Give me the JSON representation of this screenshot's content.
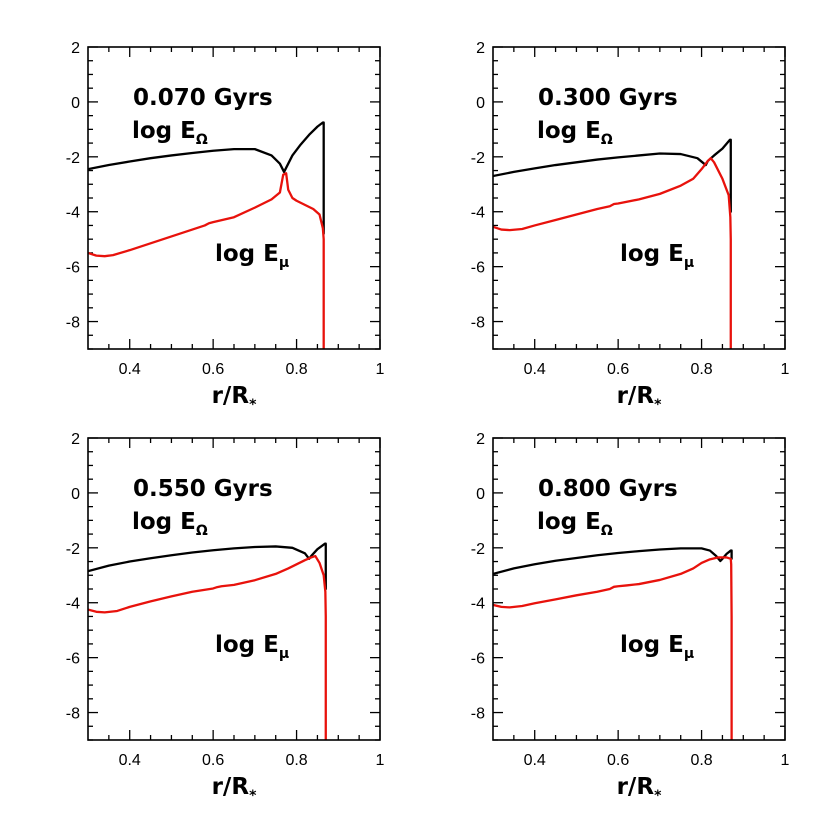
{
  "chart_data": [
    {
      "type": "line",
      "panel": "top-left",
      "title": "0.070 Gyrs",
      "xlabel": "r/R",
      "xlabel_sub": "*",
      "ylabel": "",
      "xlim": [
        0.3,
        1.0
      ],
      "ylim": [
        -9,
        2
      ],
      "xticks": [
        0.4,
        0.6,
        0.8,
        1.0
      ],
      "xtick_labels": [
        "0.4",
        "0.6",
        "0.8",
        "1"
      ],
      "yticks": [
        -8,
        -6,
        -4,
        -2,
        0,
        2
      ],
      "ytick_labels": [
        "-8",
        "-6",
        "-4",
        "-2",
        "0",
        "2"
      ],
      "series": [
        {
          "name": "log E_Ω",
          "label_main": "log E",
          "label_sub": "Ω",
          "color": "#000000",
          "x": [
            0.3,
            0.35,
            0.4,
            0.45,
            0.5,
            0.55,
            0.6,
            0.65,
            0.7,
            0.74,
            0.76,
            0.77,
            0.775,
            0.79,
            0.81,
            0.83,
            0.85,
            0.863,
            0.865,
            0.865
          ],
          "y": [
            -2.45,
            -2.3,
            -2.17,
            -2.05,
            -1.95,
            -1.86,
            -1.78,
            -1.72,
            -1.72,
            -1.95,
            -2.25,
            -2.55,
            -2.4,
            -1.95,
            -1.55,
            -1.2,
            -0.9,
            -0.75,
            -0.75,
            -4.8
          ]
        },
        {
          "name": "log E_μ",
          "label_main": "log E",
          "label_sub": "μ",
          "color": "#e8120c",
          "x": [
            0.3,
            0.32,
            0.34,
            0.36,
            0.4,
            0.45,
            0.5,
            0.55,
            0.58,
            0.59,
            0.6,
            0.65,
            0.7,
            0.74,
            0.76,
            0.768,
            0.775,
            0.78,
            0.79,
            0.8,
            0.82,
            0.84,
            0.855,
            0.863,
            0.865,
            0.865
          ],
          "y": [
            -5.5,
            -5.6,
            -5.62,
            -5.58,
            -5.4,
            -5.15,
            -4.9,
            -4.65,
            -4.5,
            -4.42,
            -4.38,
            -4.2,
            -3.85,
            -3.55,
            -3.3,
            -2.65,
            -2.6,
            -3.2,
            -3.5,
            -3.6,
            -3.75,
            -3.9,
            -4.1,
            -4.6,
            -5.0,
            -9.0
          ]
        }
      ]
    },
    {
      "type": "line",
      "panel": "top-right",
      "title": "0.300 Gyrs",
      "xlabel": "r/R",
      "xlabel_sub": "*",
      "ylabel": "",
      "xlim": [
        0.3,
        1.0
      ],
      "ylim": [
        -9,
        2
      ],
      "xticks": [
        0.4,
        0.6,
        0.8,
        1.0
      ],
      "xtick_labels": [
        "0.4",
        "0.6",
        "0.8",
        "1"
      ],
      "yticks": [
        -8,
        -6,
        -4,
        -2,
        0,
        2
      ],
      "ytick_labels": [
        "-8",
        "-6",
        "-4",
        "-2",
        "0",
        "2"
      ],
      "series": [
        {
          "name": "log E_Ω",
          "label_main": "log E",
          "label_sub": "Ω",
          "color": "#000000",
          "x": [
            0.3,
            0.35,
            0.4,
            0.45,
            0.5,
            0.55,
            0.6,
            0.65,
            0.7,
            0.75,
            0.79,
            0.81,
            0.815,
            0.83,
            0.85,
            0.868,
            0.87,
            0.87
          ],
          "y": [
            -2.7,
            -2.55,
            -2.42,
            -2.3,
            -2.2,
            -2.1,
            -2.02,
            -1.95,
            -1.88,
            -1.9,
            -2.05,
            -2.3,
            -2.15,
            -1.95,
            -1.7,
            -1.38,
            -1.38,
            -4.0
          ]
        },
        {
          "name": "log E_μ",
          "label_main": "log E",
          "label_sub": "μ",
          "color": "#e8120c",
          "x": [
            0.3,
            0.32,
            0.34,
            0.37,
            0.4,
            0.45,
            0.5,
            0.55,
            0.58,
            0.59,
            0.6,
            0.65,
            0.7,
            0.75,
            0.78,
            0.8,
            0.815,
            0.822,
            0.83,
            0.85,
            0.865,
            0.869,
            0.87,
            0.87
          ],
          "y": [
            -4.55,
            -4.65,
            -4.67,
            -4.63,
            -4.5,
            -4.3,
            -4.1,
            -3.9,
            -3.8,
            -3.72,
            -3.7,
            -3.55,
            -3.35,
            -3.05,
            -2.8,
            -2.45,
            -2.15,
            -2.05,
            -2.2,
            -2.8,
            -3.4,
            -4.2,
            -5.0,
            -9.0
          ]
        }
      ]
    },
    {
      "type": "line",
      "panel": "bottom-left",
      "title": "0.550 Gyrs",
      "xlabel": "r/R",
      "xlabel_sub": "*",
      "ylabel": "",
      "xlim": [
        0.3,
        1.0
      ],
      "ylim": [
        -9,
        2
      ],
      "xticks": [
        0.4,
        0.6,
        0.8,
        1.0
      ],
      "xtick_labels": [
        "0.4",
        "0.6",
        "0.8",
        "1"
      ],
      "yticks": [
        -8,
        -6,
        -4,
        -2,
        0,
        2
      ],
      "ytick_labels": [
        "-8",
        "-6",
        "-4",
        "-2",
        "0",
        "2"
      ],
      "series": [
        {
          "name": "log E_Ω",
          "label_main": "log E",
          "label_sub": "Ω",
          "color": "#000000",
          "x": [
            0.3,
            0.35,
            0.4,
            0.45,
            0.5,
            0.55,
            0.6,
            0.65,
            0.7,
            0.75,
            0.79,
            0.82,
            0.83,
            0.835,
            0.85,
            0.868,
            0.87,
            0.87
          ],
          "y": [
            -2.85,
            -2.65,
            -2.5,
            -2.38,
            -2.27,
            -2.17,
            -2.09,
            -2.02,
            -1.97,
            -1.95,
            -2.0,
            -2.2,
            -2.4,
            -2.3,
            -2.05,
            -1.85,
            -1.85,
            -3.5
          ]
        },
        {
          "name": "log E_μ",
          "label_main": "log E",
          "label_sub": "μ",
          "color": "#e8120c",
          "x": [
            0.3,
            0.32,
            0.34,
            0.37,
            0.4,
            0.45,
            0.5,
            0.55,
            0.6,
            0.61,
            0.62,
            0.65,
            0.7,
            0.75,
            0.78,
            0.8,
            0.82,
            0.835,
            0.845,
            0.855,
            0.865,
            0.869,
            0.87,
            0.87
          ],
          "y": [
            -4.25,
            -4.33,
            -4.35,
            -4.3,
            -4.15,
            -3.95,
            -3.77,
            -3.6,
            -3.48,
            -3.43,
            -3.4,
            -3.35,
            -3.18,
            -2.95,
            -2.75,
            -2.6,
            -2.45,
            -2.35,
            -2.3,
            -2.55,
            -3.0,
            -3.6,
            -4.5,
            -9.0
          ]
        }
      ]
    },
    {
      "type": "line",
      "panel": "bottom-right",
      "title": "0.800 Gyrs",
      "xlabel": "r/R",
      "xlabel_sub": "*",
      "ylabel": "",
      "xlim": [
        0.3,
        1.0
      ],
      "ylim": [
        -9,
        2
      ],
      "xticks": [
        0.4,
        0.6,
        0.8,
        1.0
      ],
      "xtick_labels": [
        "0.4",
        "0.6",
        "0.8",
        "1"
      ],
      "yticks": [
        -8,
        -6,
        -4,
        -2,
        0,
        2
      ],
      "ytick_labels": [
        "-8",
        "-6",
        "-4",
        "-2",
        "0",
        "2"
      ],
      "series": [
        {
          "name": "log E_Ω",
          "label_main": "log E",
          "label_sub": "Ω",
          "color": "#000000",
          "x": [
            0.3,
            0.35,
            0.4,
            0.45,
            0.5,
            0.55,
            0.6,
            0.65,
            0.7,
            0.75,
            0.8,
            0.82,
            0.835,
            0.845,
            0.85,
            0.86,
            0.87,
            0.872,
            0.872
          ],
          "y": [
            -2.95,
            -2.75,
            -2.6,
            -2.47,
            -2.37,
            -2.27,
            -2.19,
            -2.12,
            -2.06,
            -2.02,
            -2.02,
            -2.1,
            -2.3,
            -2.48,
            -2.4,
            -2.22,
            -2.1,
            -2.1,
            -2.4
          ]
        },
        {
          "name": "log E_μ",
          "label_main": "log E",
          "label_sub": "μ",
          "color": "#e8120c",
          "x": [
            0.3,
            0.32,
            0.34,
            0.37,
            0.4,
            0.45,
            0.5,
            0.55,
            0.58,
            0.59,
            0.6,
            0.62,
            0.65,
            0.7,
            0.75,
            0.78,
            0.8,
            0.82,
            0.84,
            0.86,
            0.87,
            0.871,
            0.872,
            0.872
          ],
          "y": [
            -4.08,
            -4.15,
            -4.17,
            -4.12,
            -4.02,
            -3.88,
            -3.73,
            -3.6,
            -3.5,
            -3.42,
            -3.4,
            -3.37,
            -3.32,
            -3.17,
            -2.95,
            -2.75,
            -2.55,
            -2.42,
            -2.35,
            -2.35,
            -2.4,
            -2.6,
            -4.5,
            -9.0
          ]
        }
      ]
    }
  ]
}
